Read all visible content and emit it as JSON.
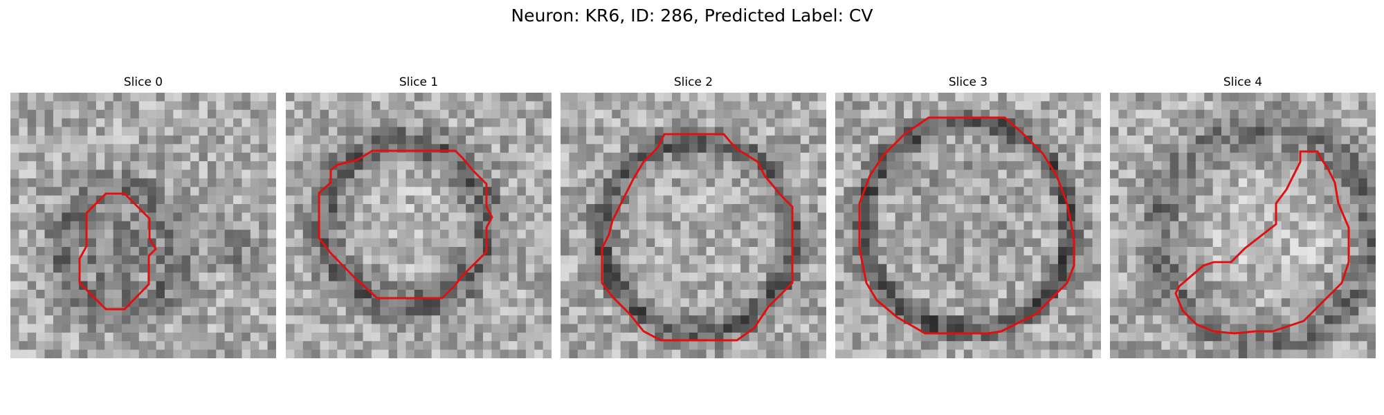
{
  "figure": {
    "title": "Neuron: KR6, ID: 286, Predicted Label: CV"
  },
  "panels": [
    {
      "title": "Slice 0",
      "outline_color": "#e01010"
    },
    {
      "title": "Slice 1",
      "outline_color": "#e01010"
    },
    {
      "title": "Slice 2",
      "outline_color": "#e01010"
    },
    {
      "title": "Slice 3",
      "outline_color": "#e01010"
    },
    {
      "title": "Slice 4",
      "outline_color": "#e01010"
    }
  ]
}
